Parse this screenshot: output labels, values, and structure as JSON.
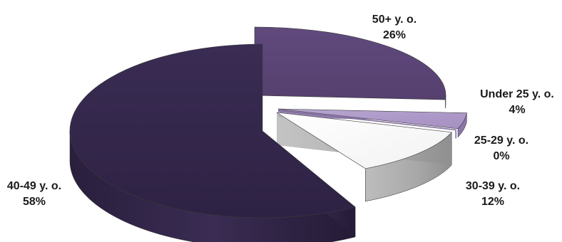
{
  "chart_data": {
    "type": "pie",
    "categories": [
      "50+ y. o.",
      "Under 25 y. o.",
      "25-29 y. o.",
      "30-39 y. o.",
      "40-49 y. o."
    ],
    "values": [
      26,
      4,
      0,
      12,
      58
    ],
    "value_labels": [
      "26%",
      "4%",
      "0%",
      "12%",
      "58%"
    ],
    "colors": {
      "50+ y. o.": "#5b4477",
      "Under 25 y. o.": "#a996c4",
      "25-29 y. o.": "#9f87bd",
      "30-39 y. o.": "#ffffff",
      "40-49 y. o.": "#33264a"
    },
    "style": "3d-exploded"
  }
}
